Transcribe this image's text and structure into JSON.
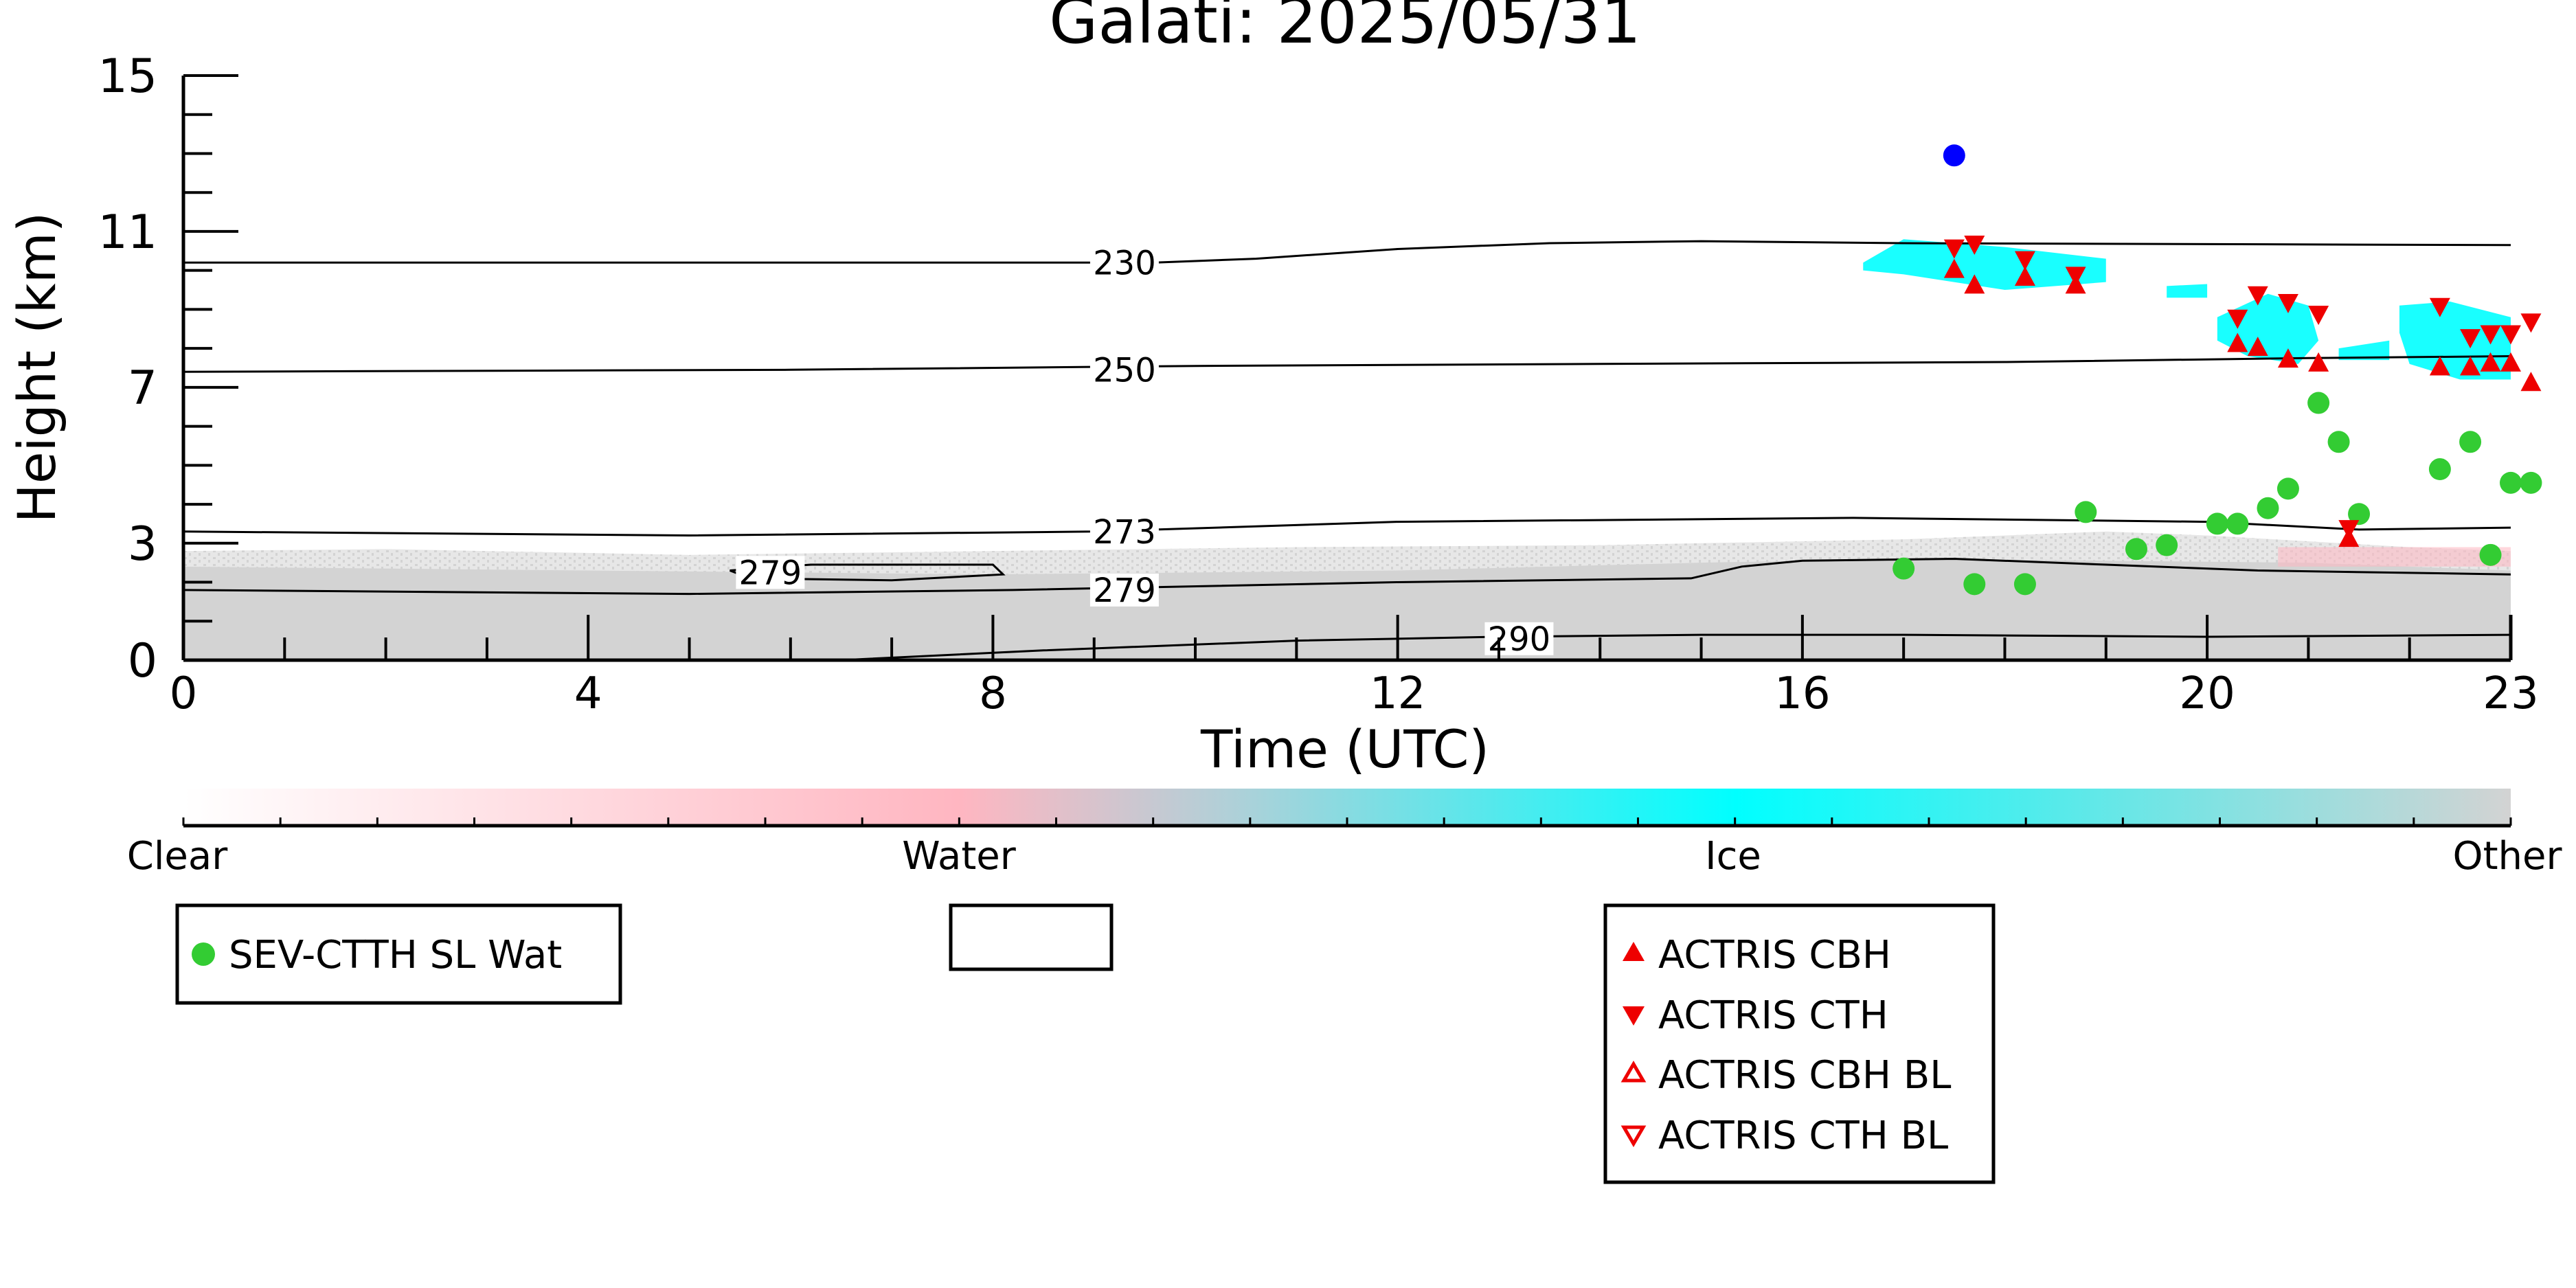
{
  "chart_data": {
    "type": "scatter",
    "title": "Galati: 2025/05/31",
    "xlabel": "Time (UTC)",
    "ylabel": "Height (km)",
    "xlim": [
      0,
      23
    ],
    "ylim": [
      0,
      15
    ],
    "x_ticks": [
      0,
      4,
      8,
      12,
      16,
      20,
      23
    ],
    "y_ticks": [
      0,
      3,
      7,
      11,
      15
    ],
    "x_tick_labels": [
      "0",
      "4",
      "8",
      "12",
      "16",
      "20",
      "23"
    ],
    "y_tick_labels": [
      "0",
      "3",
      "7",
      "11",
      "15"
    ],
    "colorbar": {
      "labels": [
        "Clear",
        "Water",
        "Ice",
        "Other"
      ],
      "colors": [
        "#ffffff",
        "#ffb6c1",
        "#00ffff",
        "#d3d3d3"
      ]
    },
    "contours": [
      {
        "label": "230",
        "points": [
          [
            0,
            10.2
          ],
          [
            9.6,
            10.2
          ],
          [
            10.6,
            10.3
          ],
          [
            12,
            10.55
          ],
          [
            13.5,
            10.7
          ],
          [
            15,
            10.75
          ],
          [
            17,
            10.7
          ],
          [
            23,
            10.65
          ]
        ]
      },
      {
        "label": "250",
        "points": [
          [
            0,
            7.4
          ],
          [
            6,
            7.45
          ],
          [
            10,
            7.55
          ],
          [
            14,
            7.6
          ],
          [
            18,
            7.65
          ],
          [
            21,
            7.75
          ],
          [
            23,
            7.8
          ]
        ]
      },
      {
        "label": "273",
        "points": [
          [
            0,
            3.3
          ],
          [
            5,
            3.2
          ],
          [
            9,
            3.3
          ],
          [
            12,
            3.55
          ],
          [
            16.5,
            3.65
          ],
          [
            20,
            3.55
          ],
          [
            21.5,
            3.35
          ],
          [
            23,
            3.4
          ]
        ]
      },
      {
        "label": "279",
        "points": [
          [
            0,
            1.8
          ],
          [
            5,
            1.7
          ],
          [
            8.2,
            1.8
          ],
          [
            12,
            2.0
          ],
          [
            14.9,
            2.1
          ],
          [
            15.4,
            2.4
          ],
          [
            16,
            2.55
          ],
          [
            17.5,
            2.6
          ],
          [
            19,
            2.45
          ],
          [
            20.5,
            2.3
          ],
          [
            23,
            2.2
          ]
        ]
      },
      {
        "label": "279",
        "points": [
          [
            5.4,
            2.3
          ],
          [
            6.2,
            2.45
          ],
          [
            8.0,
            2.45
          ],
          [
            8.1,
            2.2
          ],
          [
            7.0,
            2.05
          ],
          [
            5.6,
            2.1
          ],
          [
            5.4,
            2.3
          ]
        ]
      },
      {
        "label": "290",
        "points": [
          [
            6.5,
            0
          ],
          [
            8.5,
            0.25
          ],
          [
            11,
            0.5
          ],
          [
            13,
            0.6
          ],
          [
            15,
            0.65
          ],
          [
            17,
            0.65
          ],
          [
            20,
            0.6
          ],
          [
            23,
            0.65
          ]
        ]
      }
    ],
    "contour_labels": [
      {
        "text": "230",
        "x": 9.3,
        "y": 10.2
      },
      {
        "text": "250",
        "x": 9.3,
        "y": 7.45
      },
      {
        "text": "273",
        "x": 9.3,
        "y": 3.3
      },
      {
        "text": "279",
        "x": 9.3,
        "y": 1.8
      },
      {
        "text": "279",
        "x": 5.8,
        "y": 2.25
      },
      {
        "text": "290",
        "x": 13.2,
        "y": 0.55
      }
    ],
    "series": [
      {
        "name": "SEV-CTTH SL Wat",
        "marker": "circle",
        "color": "#33cc33",
        "points": [
          [
            17.0,
            2.35
          ],
          [
            17.7,
            1.95
          ],
          [
            18.2,
            1.95
          ],
          [
            18.8,
            3.8
          ],
          [
            19.3,
            2.85
          ],
          [
            19.6,
            2.95
          ],
          [
            20.1,
            3.5
          ],
          [
            20.3,
            3.5
          ],
          [
            20.6,
            3.9
          ],
          [
            20.8,
            4.4
          ],
          [
            21.1,
            6.6
          ],
          [
            21.3,
            5.6
          ],
          [
            21.5,
            3.75
          ],
          [
            22.3,
            4.9
          ],
          [
            22.6,
            5.6
          ],
          [
            22.8,
            2.7
          ],
          [
            23.0,
            4.55
          ],
          [
            23.2,
            4.55
          ]
        ]
      },
      {
        "name": "",
        "marker": "circle",
        "color": "#0000ff",
        "points": [
          [
            17.5,
            12.95
          ]
        ]
      },
      {
        "name": "ACTRIS CBH",
        "marker": "triangle-up",
        "color": "#ee0000",
        "points": [
          [
            17.5,
            10.0
          ],
          [
            17.7,
            9.6
          ],
          [
            18.2,
            9.8
          ],
          [
            18.7,
            9.6
          ],
          [
            20.3,
            8.1
          ],
          [
            20.5,
            8.0
          ],
          [
            20.8,
            7.7
          ],
          [
            21.1,
            7.6
          ],
          [
            21.4,
            3.1
          ],
          [
            22.3,
            7.5
          ],
          [
            22.6,
            7.5
          ],
          [
            22.8,
            7.6
          ],
          [
            23.0,
            7.6
          ],
          [
            23.2,
            7.1
          ]
        ]
      },
      {
        "name": "ACTRIS CTH",
        "marker": "triangle-down",
        "color": "#ee0000",
        "points": [
          [
            17.5,
            10.6
          ],
          [
            17.7,
            10.7
          ],
          [
            18.2,
            10.3
          ],
          [
            18.7,
            9.9
          ],
          [
            20.3,
            8.8
          ],
          [
            20.5,
            9.4
          ],
          [
            20.8,
            9.2
          ],
          [
            21.1,
            8.9
          ],
          [
            21.4,
            3.4
          ],
          [
            22.3,
            9.1
          ],
          [
            22.6,
            8.3
          ],
          [
            22.8,
            8.4
          ],
          [
            23.0,
            8.4
          ],
          [
            23.2,
            8.7
          ]
        ]
      },
      {
        "name": "ACTRIS CBH BL",
        "marker": "triangle-up-open",
        "color": "#ee0000",
        "points": []
      },
      {
        "name": "ACTRIS CTH BL",
        "marker": "triangle-down-open",
        "color": "#ee0000",
        "points": []
      }
    ]
  }
}
